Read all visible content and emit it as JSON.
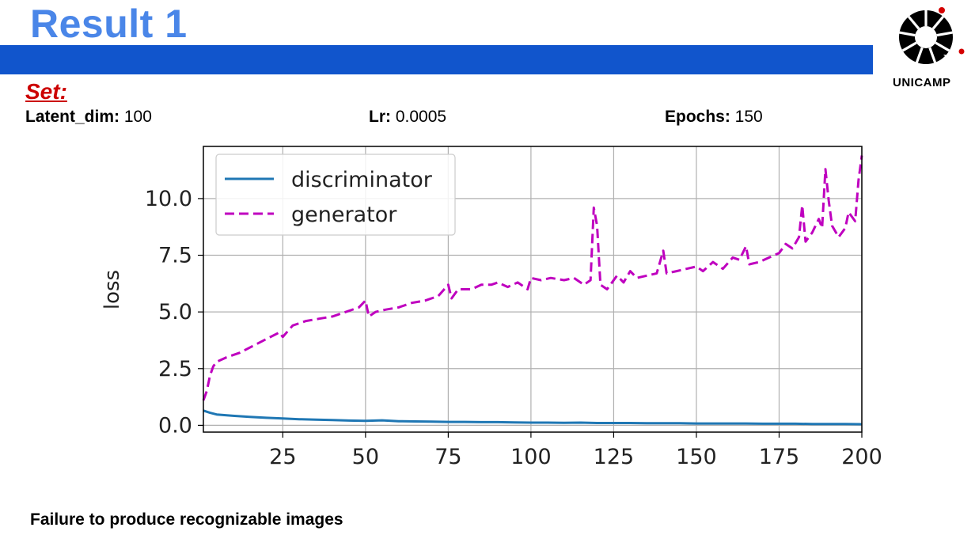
{
  "slide": {
    "title": "Result 1",
    "set_label": "Set:",
    "params": [
      {
        "name": "Latent_dim:",
        "value": " 100"
      },
      {
        "name": "Lr:",
        "value": " 0.0005"
      },
      {
        "name": "Epochs:",
        "value": " 150"
      }
    ],
    "caption": "Failure to produce recognizable images",
    "logo_text": "UNICAMP",
    "colors": {
      "title": "#4a86e8",
      "bar": "#1155cc",
      "set": "#cc0000"
    }
  },
  "chart_data": {
    "type": "line",
    "xlabel": "",
    "ylabel": "loss",
    "xlim": [
      1,
      200
    ],
    "ylim": [
      -0.3,
      12.3
    ],
    "xticks": [
      25,
      50,
      75,
      100,
      125,
      150,
      175,
      200
    ],
    "yticks": [
      0.0,
      2.5,
      5.0,
      7.5,
      10.0
    ],
    "ytick_labels": [
      "0.0",
      "2.5",
      "5.0",
      "7.5",
      "10.0"
    ],
    "grid": true,
    "legend_position": "top-left",
    "series": [
      {
        "name": "discriminator",
        "color": "#1f77b4",
        "style": "solid",
        "points": [
          [
            1,
            0.65
          ],
          [
            3,
            0.55
          ],
          [
            5,
            0.48
          ],
          [
            10,
            0.42
          ],
          [
            15,
            0.37
          ],
          [
            20,
            0.33
          ],
          [
            25,
            0.3
          ],
          [
            30,
            0.27
          ],
          [
            35,
            0.25
          ],
          [
            40,
            0.23
          ],
          [
            45,
            0.21
          ],
          [
            50,
            0.2
          ],
          [
            55,
            0.22
          ],
          [
            60,
            0.18
          ],
          [
            65,
            0.17
          ],
          [
            70,
            0.16
          ],
          [
            75,
            0.15
          ],
          [
            80,
            0.15
          ],
          [
            85,
            0.14
          ],
          [
            90,
            0.14
          ],
          [
            95,
            0.13
          ],
          [
            100,
            0.12
          ],
          [
            105,
            0.12
          ],
          [
            110,
            0.11
          ],
          [
            115,
            0.12
          ],
          [
            120,
            0.1
          ],
          [
            125,
            0.1
          ],
          [
            130,
            0.1
          ],
          [
            135,
            0.09
          ],
          [
            140,
            0.09
          ],
          [
            145,
            0.09
          ],
          [
            150,
            0.08
          ],
          [
            155,
            0.08
          ],
          [
            160,
            0.08
          ],
          [
            165,
            0.08
          ],
          [
            170,
            0.07
          ],
          [
            175,
            0.07
          ],
          [
            180,
            0.07
          ],
          [
            185,
            0.06
          ],
          [
            190,
            0.06
          ],
          [
            195,
            0.06
          ],
          [
            200,
            0.05
          ]
        ]
      },
      {
        "name": "generator",
        "color": "#bf00bf",
        "style": "dashed",
        "points": [
          [
            1,
            1.1
          ],
          [
            2,
            1.5
          ],
          [
            3,
            2.2
          ],
          [
            4,
            2.6
          ],
          [
            5,
            2.8
          ],
          [
            8,
            3.0
          ],
          [
            12,
            3.2
          ],
          [
            16,
            3.5
          ],
          [
            20,
            3.8
          ],
          [
            24,
            4.1
          ],
          [
            25,
            3.9
          ],
          [
            28,
            4.4
          ],
          [
            32,
            4.6
          ],
          [
            36,
            4.7
          ],
          [
            40,
            4.8
          ],
          [
            44,
            5.0
          ],
          [
            48,
            5.2
          ],
          [
            50,
            5.5
          ],
          [
            51,
            4.8
          ],
          [
            53,
            5.0
          ],
          [
            56,
            5.1
          ],
          [
            60,
            5.2
          ],
          [
            64,
            5.4
          ],
          [
            68,
            5.5
          ],
          [
            72,
            5.7
          ],
          [
            75,
            6.2
          ],
          [
            76,
            5.6
          ],
          [
            78,
            6.0
          ],
          [
            82,
            6.0
          ],
          [
            85,
            6.2
          ],
          [
            88,
            6.2
          ],
          [
            90,
            6.3
          ],
          [
            93,
            6.1
          ],
          [
            96,
            6.3
          ],
          [
            99,
            6.0
          ],
          [
            100,
            6.5
          ],
          [
            103,
            6.4
          ],
          [
            106,
            6.5
          ],
          [
            110,
            6.4
          ],
          [
            113,
            6.5
          ],
          [
            116,
            6.2
          ],
          [
            118,
            6.4
          ],
          [
            119,
            9.6
          ],
          [
            120,
            8.8
          ],
          [
            121,
            6.2
          ],
          [
            123,
            6.0
          ],
          [
            126,
            6.6
          ],
          [
            128,
            6.3
          ],
          [
            130,
            6.8
          ],
          [
            132,
            6.5
          ],
          [
            135,
            6.6
          ],
          [
            138,
            6.7
          ],
          [
            140,
            7.7
          ],
          [
            141,
            6.7
          ],
          [
            144,
            6.8
          ],
          [
            147,
            6.9
          ],
          [
            150,
            7.0
          ],
          [
            152,
            6.8
          ],
          [
            155,
            7.2
          ],
          [
            158,
            6.9
          ],
          [
            161,
            7.4
          ],
          [
            163,
            7.3
          ],
          [
            165,
            7.9
          ],
          [
            166,
            7.1
          ],
          [
            169,
            7.2
          ],
          [
            172,
            7.4
          ],
          [
            175,
            7.6
          ],
          [
            177,
            8.0
          ],
          [
            179,
            7.8
          ],
          [
            181,
            8.3
          ],
          [
            182,
            9.7
          ],
          [
            183,
            8.1
          ],
          [
            185,
            8.5
          ],
          [
            187,
            9.1
          ],
          [
            188,
            8.7
          ],
          [
            189,
            11.3
          ],
          [
            190,
            9.9
          ],
          [
            191,
            8.8
          ],
          [
            193,
            8.3
          ],
          [
            195,
            8.7
          ],
          [
            196,
            9.4
          ],
          [
            198,
            9.0
          ],
          [
            199,
            10.8
          ],
          [
            200,
            11.9
          ]
        ]
      }
    ]
  }
}
